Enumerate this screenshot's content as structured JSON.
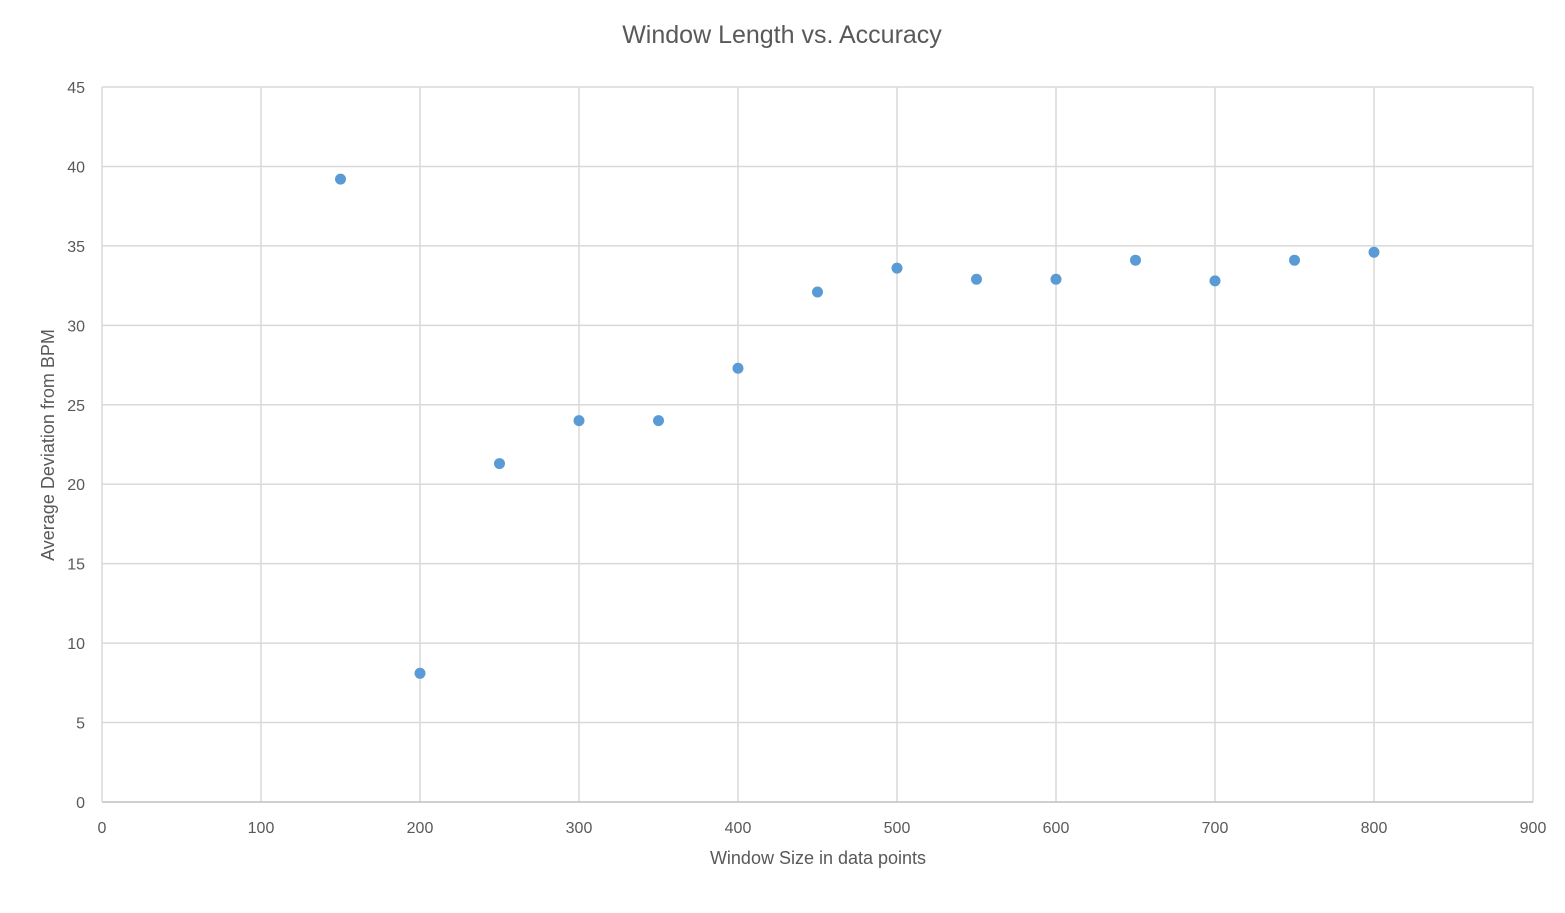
{
  "chart_data": {
    "type": "scatter",
    "title": "Window Length vs. Accuracy",
    "xlabel": "Window Size in data points",
    "ylabel": "Average Deviation from BPM",
    "xlim": [
      0,
      900
    ],
    "ylim": [
      0,
      45
    ],
    "x_ticks": [
      0,
      100,
      200,
      300,
      400,
      500,
      600,
      700,
      800,
      900
    ],
    "y_ticks": [
      0,
      5,
      10,
      15,
      20,
      25,
      30,
      35,
      40,
      45
    ],
    "grid": true,
    "marker_color": "#5b9bd5",
    "series": [
      {
        "x": [
          150,
          200,
          250,
          300,
          350,
          400,
          450,
          500,
          550,
          600,
          650,
          700,
          750,
          800
        ],
        "y": [
          39.2,
          8.1,
          21.3,
          24.0,
          24.0,
          27.3,
          32.1,
          33.6,
          32.9,
          32.9,
          34.1,
          32.8,
          34.1,
          34.6
        ]
      }
    ]
  }
}
